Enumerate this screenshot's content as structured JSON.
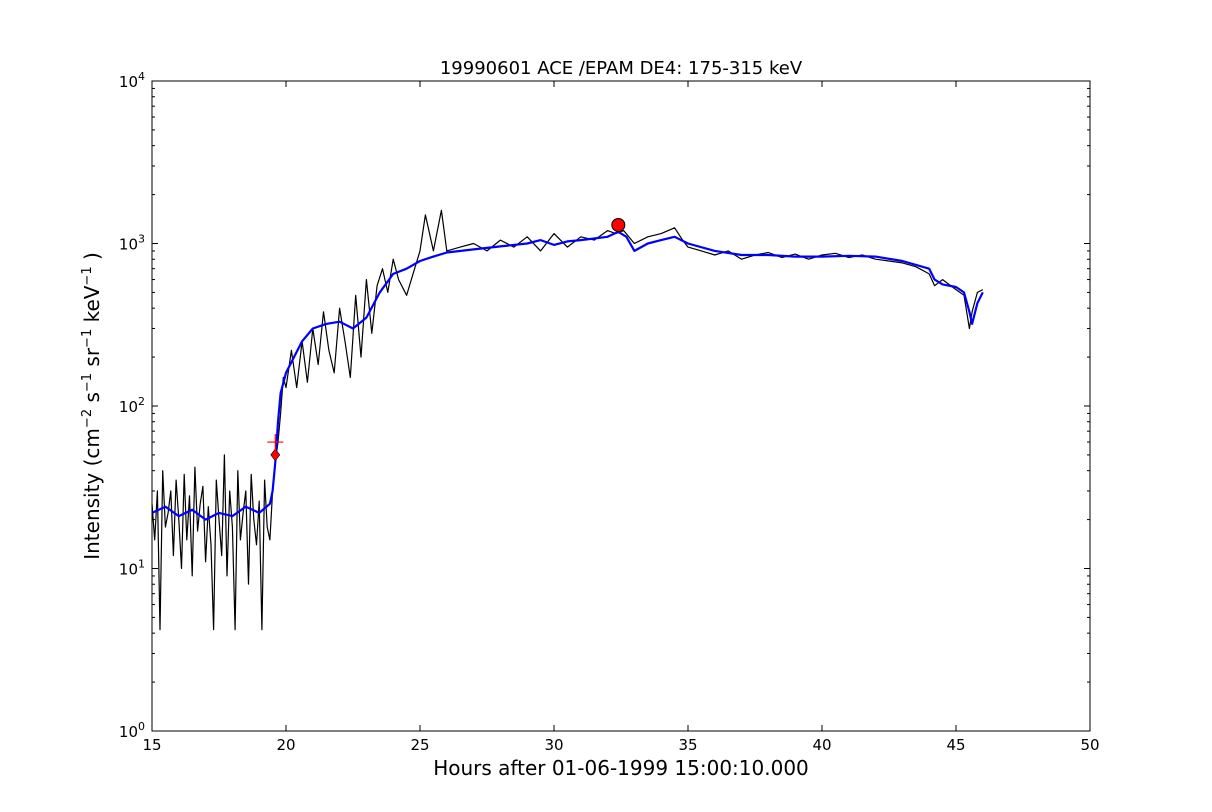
{
  "chart_data": {
    "type": "line",
    "title": "19990601 ACE /EPAM DE4: 175-315 keV",
    "xlabel": "Hours after 01-06-1999 15:00:10.000",
    "ylabel": {
      "prefix": "Intensity (cm",
      "exp1": "−2",
      "s": " s",
      "exp2": "−1",
      "sr": " sr",
      "exp3": "−1",
      "kev": " keV",
      "exp4": "−1",
      "suffix": " )"
    },
    "xlim": [
      15,
      50
    ],
    "ylim": [
      1,
      10000
    ],
    "yscale": "log",
    "grid": false,
    "xticks": [
      15,
      20,
      25,
      30,
      35,
      40,
      45,
      50
    ],
    "yticks": [
      {
        "value": 1,
        "base": "10",
        "exp": "0"
      },
      {
        "value": 10,
        "base": "10",
        "exp": "1"
      },
      {
        "value": 100,
        "base": "10",
        "exp": "2"
      },
      {
        "value": 1000,
        "base": "10",
        "exp": "3"
      },
      {
        "value": 10000,
        "base": "10",
        "exp": "4"
      }
    ],
    "series": [
      {
        "color": "#000000",
        "x": [
          15.0,
          15.1,
          15.2,
          15.3,
          15.4,
          15.5,
          15.6,
          15.7,
          15.8,
          15.9,
          16.0,
          16.1,
          16.2,
          16.3,
          16.4,
          16.5,
          16.6,
          16.7,
          16.8,
          16.9,
          17.0,
          17.1,
          17.2,
          17.3,
          17.4,
          17.5,
          17.6,
          17.7,
          17.8,
          17.9,
          18.0,
          18.1,
          18.2,
          18.3,
          18.4,
          18.5,
          18.6,
          18.7,
          18.8,
          18.9,
          19.0,
          19.1,
          19.2,
          19.3,
          19.4,
          19.5,
          19.6,
          19.7,
          19.8,
          19.9,
          20.0,
          20.2,
          20.4,
          20.6,
          20.8,
          21.0,
          21.2,
          21.4,
          21.6,
          21.8,
          22.0,
          22.2,
          22.4,
          22.6,
          22.8,
          23.0,
          23.2,
          23.4,
          23.6,
          23.8,
          24.0,
          24.2,
          24.5,
          24.8,
          25.0,
          25.2,
          25.5,
          25.8,
          26.0,
          26.5,
          27.0,
          27.5,
          28.0,
          28.5,
          29.0,
          29.5,
          30.0,
          30.5,
          31.0,
          31.5,
          32.0,
          32.3,
          32.6,
          33.0,
          33.5,
          34.0,
          34.5,
          34.8,
          35.0,
          35.5,
          36.0,
          36.5,
          37.0,
          37.5,
          38.0,
          38.5,
          39.0,
          39.5,
          40.0,
          40.5,
          41.0,
          41.5,
          42.0,
          42.5,
          43.0,
          43.5,
          44.0,
          44.2,
          44.5,
          45.0,
          45.3,
          45.5,
          45.6,
          45.8,
          46.0
        ],
        "y": [
          25,
          15,
          30,
          4.2,
          40,
          18,
          22,
          30,
          12,
          35,
          20,
          10,
          38,
          15,
          28,
          9,
          42,
          17,
          25,
          32,
          11,
          24,
          14,
          4.2,
          35,
          20,
          12,
          50,
          9,
          30,
          18,
          4.2,
          40,
          15,
          22,
          30,
          8,
          38,
          20,
          14,
          26,
          4.2,
          35,
          18,
          15,
          30,
          45,
          60,
          90,
          150,
          130,
          220,
          130,
          250,
          140,
          300,
          180,
          380,
          220,
          160,
          400,
          250,
          150,
          480,
          200,
          600,
          280,
          550,
          700,
          500,
          800,
          600,
          480,
          700,
          900,
          1500,
          900,
          1600,
          900,
          950,
          1000,
          900,
          1050,
          950,
          1100,
          900,
          1150,
          950,
          1100,
          1050,
          1200,
          1150,
          1200,
          1000,
          1100,
          1150,
          1250,
          1050,
          950,
          900,
          850,
          900,
          800,
          850,
          880,
          820,
          860,
          800,
          850,
          870,
          820,
          850,
          800,
          780,
          760,
          720,
          650,
          550,
          600,
          520,
          480,
          300,
          380,
          500,
          520
        ]
      },
      {
        "color": "#0000ff",
        "x": [
          15.0,
          15.5,
          16.0,
          16.5,
          17.0,
          17.5,
          18.0,
          18.5,
          19.0,
          19.4,
          19.5,
          19.6,
          19.7,
          19.8,
          20.0,
          20.3,
          20.6,
          21.0,
          21.5,
          22.0,
          22.5,
          23.0,
          23.5,
          24.0,
          24.5,
          25.0,
          25.5,
          26.0,
          27.0,
          28.0,
          29.0,
          29.5,
          30.0,
          30.5,
          31.0,
          32.0,
          32.4,
          32.7,
          33.0,
          33.5,
          34.0,
          34.5,
          35.0,
          36.0,
          37.0,
          38.0,
          39.0,
          40.0,
          41.0,
          42.0,
          43.0,
          44.0,
          44.2,
          44.5,
          45.0,
          45.3,
          45.5,
          45.6,
          45.8,
          46.0
        ],
        "y": [
          22,
          24,
          21,
          23,
          20,
          22,
          21,
          24,
          22,
          25,
          30,
          45,
          80,
          120,
          160,
          200,
          250,
          300,
          320,
          330,
          300,
          350,
          500,
          650,
          700,
          780,
          830,
          880,
          920,
          960,
          1000,
          1050,
          980,
          1030,
          1050,
          1100,
          1180,
          1100,
          900,
          1000,
          1050,
          1100,
          1000,
          900,
          850,
          850,
          830,
          830,
          840,
          830,
          780,
          700,
          600,
          560,
          540,
          500,
          380,
          320,
          430,
          500
        ]
      }
    ],
    "markers": [
      {
        "shape": "circle",
        "color": "#ff0000",
        "x": 32.4,
        "y": 1300
      },
      {
        "shape": "diamond",
        "color": "#ff0000",
        "x": 19.6,
        "y": 50
      },
      {
        "shape": "plus",
        "color": "#ff0000",
        "x": 19.6,
        "y": 60
      }
    ]
  }
}
